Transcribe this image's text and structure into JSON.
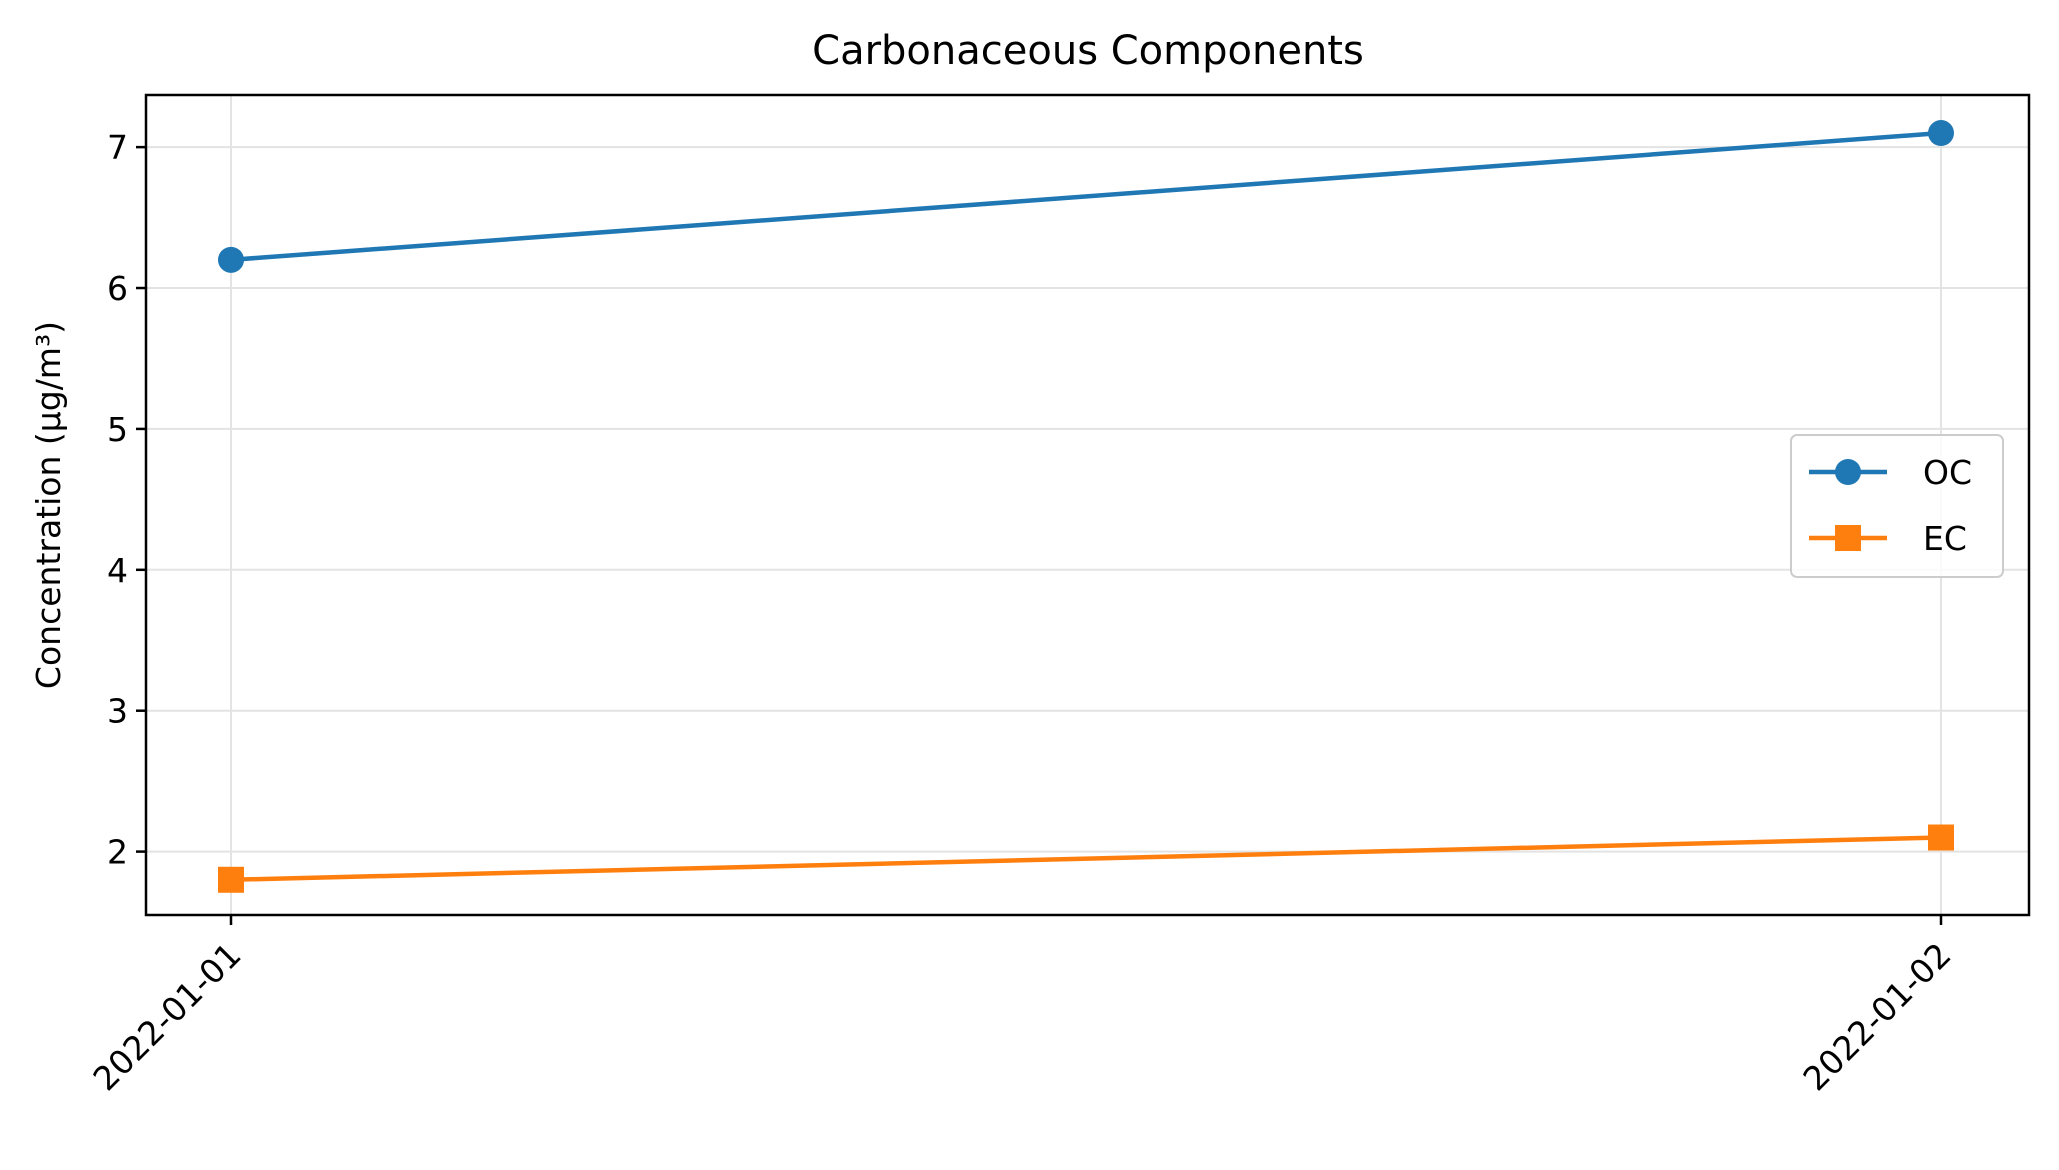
{
  "chart_data": {
    "type": "line",
    "title": "Carbonaceous Components",
    "xlabel": "",
    "ylabel": "Concentration (µg/m³)",
    "x": [
      "2022-01-01",
      "2022-01-02"
    ],
    "ylim": [
      1.55,
      7.37
    ],
    "yticks": [
      2,
      3,
      4,
      5,
      6,
      7
    ],
    "grid": true,
    "legend_position": "center-right",
    "series": [
      {
        "name": "OC",
        "values": [
          6.2,
          7.1
        ],
        "color": "#1f77b4",
        "marker": "circle"
      },
      {
        "name": "EC",
        "values": [
          1.8,
          2.1
        ],
        "color": "#ff7f0e",
        "marker": "square"
      }
    ]
  }
}
